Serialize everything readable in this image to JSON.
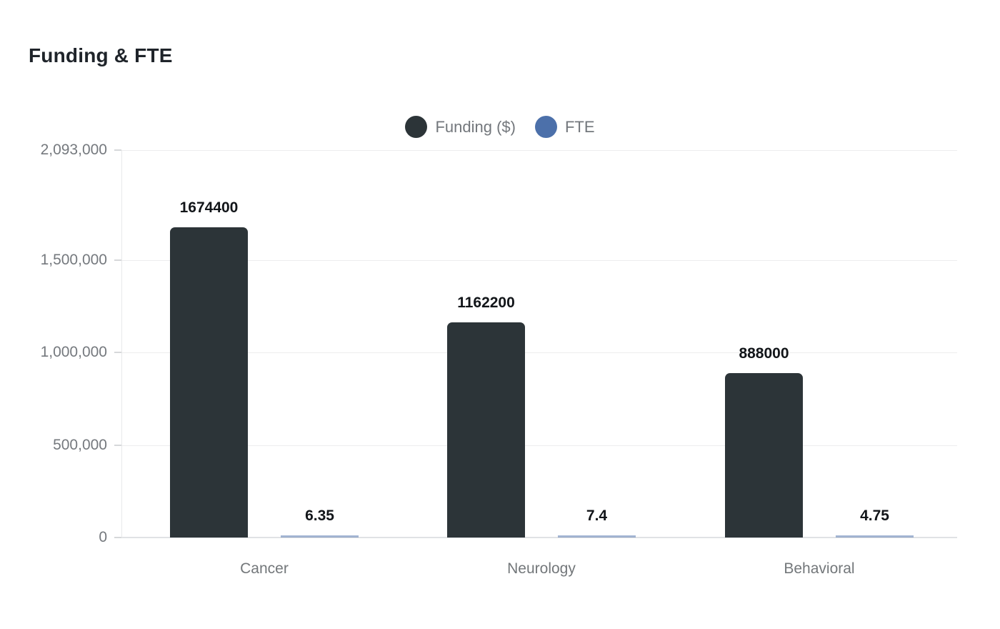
{
  "title": "Funding & FTE",
  "legend": {
    "items": [
      {
        "label": "Funding ($)",
        "color": "#2c3438"
      },
      {
        "label": "FTE",
        "color": "#4c70aa"
      }
    ]
  },
  "chart_data": {
    "type": "bar",
    "title": "Funding & FTE",
    "categories": [
      "Cancer",
      "Neurology",
      "Behavioral"
    ],
    "series": [
      {
        "name": "Funding ($)",
        "color": "#2c3438",
        "values": [
          1674400,
          1162200,
          888000
        ],
        "value_labels": [
          "1674400",
          "1162200",
          "888000"
        ]
      },
      {
        "name": "FTE",
        "color": "#4c70aa",
        "values": [
          6.35,
          7.4,
          4.75
        ],
        "value_labels": [
          "6.35",
          "7.4",
          "4.75"
        ]
      }
    ],
    "ylim": [
      0,
      2093000
    ],
    "yticks": [
      {
        "value": 0,
        "label": "0"
      },
      {
        "value": 500000,
        "label": "500,000"
      },
      {
        "value": 1000000,
        "label": "1,000,000"
      },
      {
        "value": 1500000,
        "label": "1,500,000"
      },
      {
        "value": 2093000,
        "label": "2,093,000"
      }
    ],
    "grid": true,
    "legend_position": "top-center",
    "value_labels_shown": true,
    "xlabel": "",
    "ylabel": ""
  }
}
